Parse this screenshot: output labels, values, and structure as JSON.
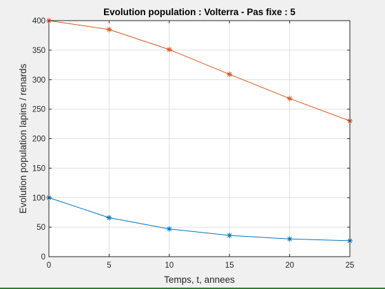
{
  "window": {
    "accent_bottom_color": "#2e7d32"
  },
  "chart_data": {
    "type": "line",
    "title": "Evolution population : Volterra - Pas fixe : 5",
    "xlabel": "Temps, t, annees",
    "ylabel": "Evolution population lapins / renards",
    "xlim": [
      0,
      25
    ],
    "ylim": [
      0,
      400
    ],
    "xticks": [
      0,
      5,
      10,
      15,
      20,
      25
    ],
    "yticks": [
      0,
      50,
      100,
      150,
      200,
      250,
      300,
      350,
      400
    ],
    "grid": true,
    "marker": "*",
    "series": [
      {
        "color": "#0072bd",
        "x": [
          0,
          5,
          10,
          15,
          20,
          25
        ],
        "values": [
          100,
          66,
          47,
          36,
          30,
          27
        ]
      },
      {
        "color": "#d95319",
        "x": [
          0,
          5,
          10,
          15,
          20,
          25
        ],
        "values": [
          400,
          385,
          351,
          309,
          268,
          230
        ]
      }
    ]
  }
}
